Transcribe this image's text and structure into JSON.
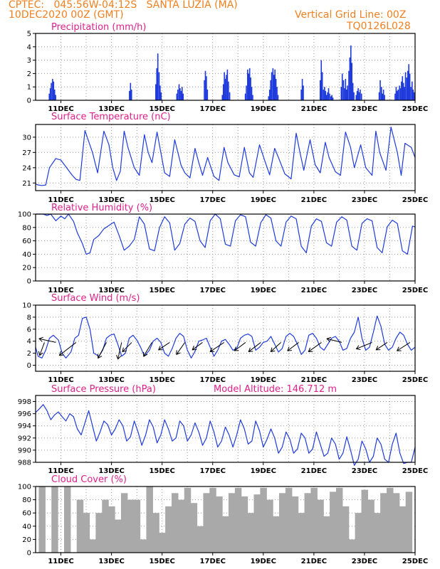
{
  "header": {
    "line1_left": "CPTEC:   045:56W-04:12S   SANTA LUZIA (MA)",
    "line1_right": "Vertical Grid Line: 00Z",
    "line2_left": "10DEC2020 00Z (GMT)",
    "line2_right": "TQ0126L028"
  },
  "colors": {
    "header": "#f08020",
    "title": "#e0208a",
    "series": "#1f3bdc",
    "cloud": "#a9a9a9",
    "arrow": "#000000",
    "grid": "#9a9a9a"
  },
  "chart_data": [
    {
      "type": "bar",
      "title": "Precipitation (mm/h)",
      "x_unit": "days since 10DEC2020 00Z",
      "xlim": [
        0,
        15
      ],
      "ylim": [
        0,
        5
      ],
      "yticks": [
        0,
        1,
        2,
        3,
        4,
        5
      ],
      "xtick_labels": [
        "11DEC",
        "13DEC",
        "15DEC",
        "17DEC",
        "19DEC",
        "21DEC",
        "23DEC",
        "25DEC"
      ],
      "x": [
        0.54,
        0.58,
        0.62,
        0.67,
        0.71,
        0.75,
        0.79,
        3.71,
        3.75,
        3.79,
        4.75,
        4.79,
        4.83,
        4.88,
        4.92,
        4.96,
        5.58,
        5.62,
        5.67,
        5.71,
        5.75,
        5.79,
        5.83,
        6.67,
        6.71,
        6.75,
        6.79,
        7.38,
        7.42,
        7.46,
        7.5,
        7.54,
        7.58,
        7.62,
        7.67,
        8.29,
        8.33,
        8.38,
        8.42,
        8.46,
        8.5,
        8.54,
        8.58,
        9.21,
        9.25,
        9.29,
        9.33,
        9.38,
        9.42,
        9.46,
        9.5,
        9.54,
        9.58,
        10.5,
        10.54,
        10.58,
        11.25,
        11.29,
        11.33,
        11.38,
        11.42,
        11.46,
        11.5,
        11.54,
        11.58,
        11.62,
        11.67,
        11.71,
        11.75,
        12.08,
        12.12,
        12.17,
        12.21,
        12.25,
        12.29,
        12.33,
        12.38,
        12.42,
        12.46,
        12.5,
        12.54,
        12.58,
        12.67,
        12.71,
        12.75,
        12.79,
        12.83,
        12.88,
        13.58,
        13.62,
        13.67,
        13.71,
        13.75,
        13.79,
        14.21,
        14.25,
        14.29,
        14.33,
        14.38,
        14.42,
        14.46,
        14.5,
        14.54,
        14.58,
        14.62,
        14.67,
        14.71,
        14.75,
        14.79,
        14.83,
        14.88,
        14.92,
        14.96
      ],
      "values": [
        0.5,
        0.9,
        1.3,
        1.6,
        1.4,
        0.8,
        0.4,
        0.7,
        1.3,
        0.8,
        1.2,
        2.4,
        3.5,
        2.1,
        1.1,
        0.6,
        0.5,
        0.8,
        1.2,
        0.9,
        0.7,
        1.0,
        0.5,
        1.5,
        2.2,
        1.8,
        0.8,
        0.4,
        1.2,
        2.1,
        1.6,
        1.9,
        2.3,
        1.4,
        0.6,
        0.5,
        1.1,
        2.3,
        2.0,
        2.4,
        1.7,
        1.0,
        0.4,
        0.3,
        0.8,
        1.5,
        2.1,
        2.4,
        1.9,
        2.3,
        1.6,
        1.0,
        0.4,
        0.8,
        1.6,
        1.1,
        1.5,
        3.0,
        2.1,
        0.8,
        1.0,
        0.7,
        0.4,
        0.6,
        0.9,
        0.5,
        0.3,
        0.4,
        0.2,
        1.0,
        2.0,
        1.5,
        0.9,
        1.6,
        0.8,
        1.1,
        2.2,
        3.2,
        4.1,
        2.8,
        1.3,
        0.6,
        0.4,
        0.7,
        0.9,
        0.6,
        0.8,
        0.5,
        0.6,
        1.5,
        1.0,
        0.5,
        0.8,
        0.4,
        0.5,
        1.0,
        0.7,
        0.8,
        1.1,
        0.9,
        1.4,
        1.8,
        1.3,
        1.0,
        2.1,
        1.7,
        2.2,
        2.7,
        2.0,
        1.0,
        1.4,
        0.8,
        0.6
      ]
    },
    {
      "type": "line",
      "title": "Surface Temperature (nC)",
      "x_unit": "days since 10DEC2020 00Z",
      "xlim": [
        0,
        15
      ],
      "ylim": [
        19.5,
        32.5
      ],
      "yticks": [
        21,
        24,
        27,
        30
      ],
      "xtick_labels": [
        "11DEC",
        "13DEC",
        "15DEC",
        "17DEC",
        "19DEC",
        "21DEC",
        "23DEC",
        "25DEC"
      ],
      "x": [
        0,
        0.1,
        0.25,
        0.4,
        0.55,
        0.8,
        1.0,
        1.15,
        1.3,
        1.45,
        1.6,
        1.75,
        1.95,
        2.25,
        2.45,
        2.7,
        2.9,
        3.05,
        3.2,
        3.35,
        3.5,
        3.65,
        3.9,
        4.1,
        4.3,
        4.45,
        4.6,
        4.8,
        5.1,
        5.3,
        5.5,
        5.75,
        5.9,
        6.1,
        6.3,
        6.45,
        6.6,
        6.8,
        7.05,
        7.25,
        7.45,
        7.6,
        7.85,
        8.05,
        8.25,
        8.45,
        8.6,
        8.85,
        9.05,
        9.25,
        9.45,
        9.6,
        9.85,
        10.1,
        10.3,
        10.45,
        10.6,
        10.85,
        11.05,
        11.25,
        11.45,
        11.6,
        11.85,
        12.05,
        12.25,
        12.45,
        12.6,
        12.85,
        13.05,
        13.3,
        13.45,
        13.6,
        13.85,
        14.05,
        14.3,
        14.45,
        14.6,
        14.85,
        15.0
      ],
      "values": [
        20.8,
        20.6,
        20.5,
        20.6,
        24.0,
        25.8,
        25.5,
        24.5,
        23.5,
        22.5,
        21.7,
        21.5,
        31.3,
        27.0,
        23.0,
        31.2,
        28.5,
        24.0,
        21.5,
        23.3,
        31.2,
        28.0,
        24.0,
        22.5,
        30.5,
        27.0,
        25.0,
        31.0,
        23.0,
        22.3,
        29.5,
        24.5,
        23.0,
        22.0,
        27.8,
        25.0,
        22.5,
        26.0,
        22.3,
        21.5,
        28.0,
        25.0,
        22.6,
        22.2,
        28.0,
        23.0,
        22.1,
        28.5,
        25.5,
        22.6,
        27.8,
        26.0,
        22.8,
        21.8,
        30.8,
        27.0,
        23.5,
        29.5,
        24.6,
        23.0,
        29.0,
        26.0,
        23.2,
        22.5,
        31.0,
        28.0,
        24.0,
        28.5,
        24.0,
        22.5,
        31.2,
        27.0,
        23.5,
        32.0,
        27.0,
        22.5,
        28.8,
        28.0,
        26.0
      ]
    },
    {
      "type": "line",
      "title": "Relative Humidity (%)",
      "x_unit": "days since 10DEC2020 00Z",
      "xlim": [
        0,
        15
      ],
      "ylim": [
        0,
        100
      ],
      "yticks": [
        0,
        20,
        40,
        60,
        80,
        100
      ],
      "xtick_labels": [
        "11DEC",
        "13DEC",
        "15DEC",
        "17DEC",
        "19DEC",
        "21DEC",
        "23DEC",
        "25DEC"
      ],
      "x": [
        0,
        0.1,
        0.3,
        0.45,
        0.6,
        0.8,
        1.0,
        1.15,
        1.3,
        1.5,
        1.65,
        1.85,
        2.0,
        2.15,
        2.3,
        2.5,
        2.7,
        2.9,
        3.1,
        3.3,
        3.5,
        3.7,
        3.9,
        4.1,
        4.3,
        4.5,
        4.7,
        4.9,
        5.1,
        5.3,
        5.5,
        5.7,
        5.9,
        6.1,
        6.3,
        6.5,
        6.7,
        6.9,
        7.1,
        7.3,
        7.5,
        7.7,
        7.9,
        8.1,
        8.3,
        8.5,
        8.7,
        8.9,
        9.1,
        9.3,
        9.5,
        9.7,
        9.9,
        10.1,
        10.3,
        10.5,
        10.7,
        10.9,
        11.1,
        11.3,
        11.5,
        11.7,
        11.9,
        12.1,
        12.3,
        12.5,
        12.7,
        12.9,
        13.1,
        13.3,
        13.5,
        13.7,
        13.9,
        14.1,
        14.3,
        14.5,
        14.7,
        14.9,
        15.0
      ],
      "values": [
        100,
        100,
        100,
        98,
        100,
        90,
        97,
        93,
        100,
        89,
        72,
        56,
        40,
        42,
        62,
        68,
        78,
        83,
        88,
        68,
        46,
        52,
        62,
        96,
        85,
        48,
        45,
        80,
        96,
        87,
        46,
        56,
        85,
        94,
        89,
        60,
        50,
        90,
        100,
        93,
        55,
        52,
        90,
        99,
        96,
        58,
        52,
        87,
        99,
        94,
        60,
        52,
        88,
        97,
        93,
        52,
        42,
        82,
        93,
        89,
        57,
        52,
        88,
        96,
        91,
        52,
        46,
        86,
        93,
        90,
        50,
        42,
        81,
        91,
        86,
        45,
        40,
        82,
        81
      ]
    },
    {
      "type": "line",
      "title": "Surface Wind (m/s)",
      "x_unit": "days since 10DEC2020 00Z",
      "xlim": [
        0,
        15
      ],
      "ylim": [
        -1,
        10
      ],
      "yticks": [
        0,
        2,
        4,
        6,
        8,
        10
      ],
      "xtick_labels": [
        "11DEC",
        "13DEC",
        "15DEC",
        "17DEC",
        "19DEC",
        "21DEC",
        "23DEC",
        "25DEC"
      ],
      "x": [
        0,
        0.1,
        0.25,
        0.4,
        0.55,
        0.7,
        0.9,
        1.05,
        1.2,
        1.4,
        1.55,
        1.7,
        1.85,
        2.0,
        2.15,
        2.3,
        2.5,
        2.65,
        2.8,
        2.95,
        3.1,
        3.25,
        3.4,
        3.55,
        3.7,
        3.85,
        4.0,
        4.15,
        4.3,
        4.5,
        4.65,
        4.8,
        4.95,
        5.1,
        5.25,
        5.4,
        5.55,
        5.7,
        5.85,
        6.0,
        6.15,
        6.3,
        6.45,
        6.6,
        6.75,
        6.9,
        7.05,
        7.2,
        7.35,
        7.5,
        7.65,
        7.8,
        7.95,
        8.1,
        8.25,
        8.4,
        8.55,
        8.7,
        8.85,
        9.0,
        9.15,
        9.3,
        9.45,
        9.6,
        9.75,
        9.9,
        10.05,
        10.2,
        10.35,
        10.5,
        10.65,
        10.8,
        10.95,
        11.1,
        11.25,
        11.4,
        11.55,
        11.7,
        11.85,
        12.0,
        12.15,
        12.3,
        12.45,
        12.6,
        12.75,
        12.9,
        13.05,
        13.2,
        13.35,
        13.5,
        13.65,
        13.8,
        13.95,
        14.1,
        14.25,
        14.4,
        14.55,
        14.7,
        14.85,
        15.0
      ],
      "values": [
        3.0,
        1.5,
        1.2,
        2.5,
        4.5,
        5.0,
        4.2,
        2.0,
        1.2,
        2.2,
        4.5,
        5.0,
        7.8,
        8.0,
        6.0,
        2.0,
        1.5,
        2.5,
        4.5,
        5.0,
        5.2,
        3.5,
        1.5,
        2.0,
        4.5,
        5.0,
        4.2,
        3.0,
        1.5,
        2.5,
        4.0,
        4.5,
        3.8,
        2.0,
        1.5,
        2.8,
        4.5,
        5.3,
        4.8,
        2.5,
        1.2,
        2.3,
        4.0,
        4.2,
        4.5,
        3.0,
        1.5,
        2.5,
        4.0,
        4.3,
        3.5,
        2.5,
        2.8,
        4.5,
        5.0,
        5.2,
        4.8,
        2.5,
        3.0,
        3.8,
        4.0,
        4.8,
        3.5,
        2.2,
        2.8,
        4.8,
        5.3,
        4.8,
        3.5,
        1.8,
        2.5,
        5.0,
        5.3,
        4.5,
        3.0,
        2.5,
        3.5,
        4.5,
        4.8,
        4.0,
        2.5,
        2.8,
        4.5,
        5.5,
        8.0,
        4.5,
        2.5,
        3.0,
        5.5,
        8.2,
        6.5,
        3.5,
        2.5,
        3.0,
        4.5,
        5.5,
        5.0,
        3.5,
        2.5,
        3.0
      ],
      "vectors": [
        {
          "x": 0.35,
          "dx": -0.26,
          "dy": -0.7
        },
        {
          "x": 0.8,
          "dx": -0.9,
          "dy": 0.2
        },
        {
          "x": 1.6,
          "dx": -0.9,
          "dy": -0.7
        },
        {
          "x": 2.8,
          "dx": -0.45,
          "dy": -0.85
        },
        {
          "x": 3.4,
          "dx": -0.2,
          "dy": -0.9
        },
        {
          "x": 3.8,
          "dx": -0.5,
          "dy": -0.5
        },
        {
          "x": 4.6,
          "dx": -0.45,
          "dy": -0.75
        },
        {
          "x": 5.3,
          "dx": -0.6,
          "dy": -0.4
        },
        {
          "x": 5.9,
          "dx": -0.45,
          "dy": -0.65
        },
        {
          "x": 6.6,
          "dx": -0.55,
          "dy": -0.4
        },
        {
          "x": 7.45,
          "dx": -0.75,
          "dy": -0.5
        },
        {
          "x": 8.3,
          "dx": -0.6,
          "dy": -0.45
        },
        {
          "x": 8.9,
          "dx": -0.65,
          "dy": -0.5
        },
        {
          "x": 9.7,
          "dx": -0.55,
          "dy": -0.5
        },
        {
          "x": 10.4,
          "dx": -0.6,
          "dy": -0.45
        },
        {
          "x": 11.3,
          "dx": -0.7,
          "dy": -0.5
        },
        {
          "x": 12.1,
          "dx": -0.8,
          "dy": 0.2
        },
        {
          "x": 13.3,
          "dx": -0.85,
          "dy": -0.35
        },
        {
          "x": 13.9,
          "dx": -0.6,
          "dy": -0.4
        },
        {
          "x": 14.8,
          "dx": -0.7,
          "dy": -0.45
        }
      ]
    },
    {
      "type": "line",
      "title": "Surface Pressure (hPa)",
      "annotation": "Model Altitude: 146.712 m",
      "x_unit": "days since 10DEC2020 00Z",
      "xlim": [
        0,
        15
      ],
      "ylim": [
        988,
        999
      ],
      "yticks": [
        988,
        990,
        992,
        994,
        996,
        998
      ],
      "xtick_labels": [
        "11DEC",
        "13DEC",
        "15DEC",
        "17DEC",
        "19DEC",
        "21DEC",
        "23DEC",
        "25DEC"
      ],
      "x": [
        0,
        0.15,
        0.3,
        0.45,
        0.6,
        0.75,
        0.9,
        1.05,
        1.2,
        1.35,
        1.5,
        1.65,
        1.8,
        1.95,
        2.1,
        2.25,
        2.4,
        2.55,
        2.7,
        2.85,
        3.0,
        3.15,
        3.3,
        3.45,
        3.6,
        3.75,
        3.9,
        4.05,
        4.2,
        4.35,
        4.5,
        4.65,
        4.8,
        4.95,
        5.1,
        5.25,
        5.4,
        5.55,
        5.7,
        5.85,
        6.0,
        6.15,
        6.3,
        6.45,
        6.6,
        6.75,
        6.9,
        7.05,
        7.2,
        7.35,
        7.5,
        7.65,
        7.8,
        7.95,
        8.1,
        8.25,
        8.4,
        8.55,
        8.7,
        8.85,
        9.0,
        9.15,
        9.3,
        9.45,
        9.6,
        9.75,
        9.9,
        10.05,
        10.2,
        10.35,
        10.5,
        10.65,
        10.8,
        10.95,
        11.1,
        11.25,
        11.4,
        11.55,
        11.7,
        11.85,
        12.0,
        12.15,
        12.3,
        12.45,
        12.6,
        12.75,
        12.9,
        13.05,
        13.2,
        13.35,
        13.5,
        13.65,
        13.8,
        13.95,
        14.1,
        14.25,
        14.4,
        14.55,
        14.7,
        14.85,
        15.0
      ],
      "values": [
        996.2,
        996.8,
        997.5,
        996.5,
        995.0,
        995.8,
        996.3,
        995.5,
        994.8,
        996.0,
        995.5,
        993.5,
        992.5,
        994.5,
        996.5,
        994.0,
        991.5,
        993.0,
        994.8,
        994.2,
        992.5,
        993.5,
        995.0,
        994.0,
        991.5,
        992.2,
        994.8,
        993.0,
        990.8,
        992.5,
        995.0,
        993.8,
        991.2,
        992.5,
        995.0,
        993.5,
        991.5,
        992.0,
        994.8,
        994.0,
        991.5,
        992.5,
        994.5,
        993.0,
        990.8,
        992.0,
        994.8,
        993.0,
        990.5,
        991.5,
        993.8,
        992.5,
        990.5,
        992.5,
        995.0,
        993.5,
        991.0,
        991.5,
        994.8,
        993.2,
        990.5,
        991.8,
        993.5,
        992.0,
        989.5,
        990.5,
        993.0,
        991.8,
        989.5,
        990.2,
        992.8,
        992.0,
        989.5,
        990.2,
        993.0,
        991.0,
        989.0,
        989.5,
        992.0,
        991.0,
        988.5,
        989.5,
        992.2,
        990.0,
        987.5,
        988.5,
        991.5,
        990.2,
        988.0,
        989.0,
        992.0,
        991.0,
        988.5,
        988.0,
        991.0,
        992.8,
        989.5,
        987.8,
        988.0,
        988.0,
        990.5
      ]
    },
    {
      "type": "bar",
      "title": "Cloud Cover (%)",
      "x_unit": "days since 10DEC2020 00Z",
      "xlim": [
        0,
        15
      ],
      "ylim": [
        0,
        100
      ],
      "yticks": [
        0,
        20,
        40,
        60,
        80,
        100
      ],
      "xtick_labels": [
        "11DEC",
        "13DEC",
        "15DEC",
        "17DEC",
        "19DEC",
        "21DEC",
        "23DEC",
        "25DEC"
      ],
      "x": [
        0.25,
        0.75,
        1.25,
        1.75,
        2.0,
        2.25,
        2.5,
        2.75,
        3.0,
        3.25,
        3.5,
        3.75,
        4.0,
        4.25,
        4.5,
        4.75,
        5.0,
        5.25,
        5.5,
        5.75,
        6.0,
        6.25,
        6.5,
        6.75,
        7.0,
        7.25,
        7.5,
        7.75,
        8.0,
        8.25,
        8.5,
        8.75,
        9.0,
        9.25,
        9.5,
        9.75,
        10.0,
        10.25,
        10.5,
        10.75,
        11.0,
        11.25,
        11.5,
        11.75,
        12.0,
        12.25,
        12.5,
        12.75,
        13.0,
        13.25,
        13.5,
        13.75,
        14.0,
        14.25,
        14.5,
        14.75
      ],
      "values": [
        100,
        100,
        100,
        80,
        60,
        20,
        60,
        80,
        70,
        50,
        90,
        80,
        80,
        20,
        100,
        60,
        30,
        70,
        90,
        80,
        98,
        75,
        40,
        90,
        98,
        85,
        55,
        90,
        98,
        85,
        60,
        88,
        98,
        80,
        55,
        90,
        98,
        85,
        60,
        90,
        98,
        80,
        55,
        92,
        98,
        70,
        20,
        60,
        95,
        80,
        60,
        90,
        98,
        90,
        70,
        92
      ]
    }
  ]
}
